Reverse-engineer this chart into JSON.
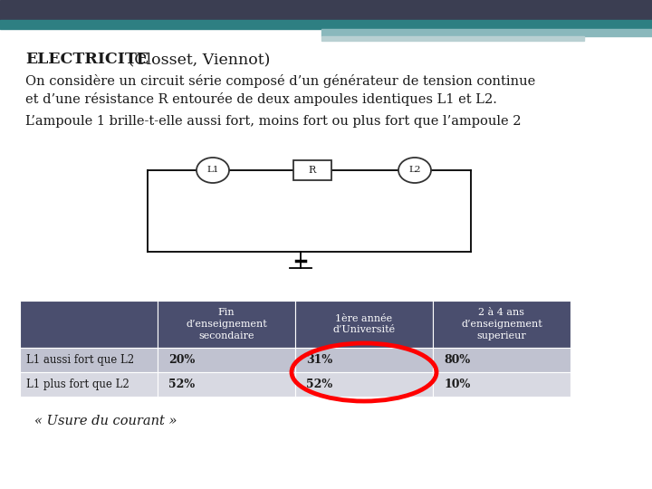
{
  "title_bold": "ELECTRICITE",
  "title_normal": " (Closset, Viennot)",
  "para1_line1": "On considère un circuit série composé d’un générateur de tension continue",
  "para1_line2": "et d’une résistance R entourée de deux ampoules identiques L1 et L2.",
  "para2": "L’ampoule 1 brille-t-elle aussi fort, moins fort ou plus fort que l’ampoule 2",
  "header_bg": "#4a4e6e",
  "header_text_color": "#ffffff",
  "row1_bg": "#c0c2d0",
  "row2_bg": "#d8d9e2",
  "table_headers": [
    "",
    "Fin\nd’enseignement\nsecondaire",
    "1ère année\nd’Université",
    "2 à 4 ans\nd’enseignement\nsuperieur"
  ],
  "row1_label": "L1 aussi fort que L2",
  "row2_label": "L1 plus fort que L2",
  "row1_data": [
    "20%",
    "31%",
    "80%"
  ],
  "row2_data": [
    "52%",
    "52%",
    "10%"
  ],
  "footer": "« Usure du courant »",
  "bg_color": "#ffffff",
  "top_bar_dark": "#3b3e52",
  "top_bar_teal": "#2e7f82",
  "top_bar_light1": "#8ab8bc",
  "top_bar_light2": "#b8d0d2"
}
